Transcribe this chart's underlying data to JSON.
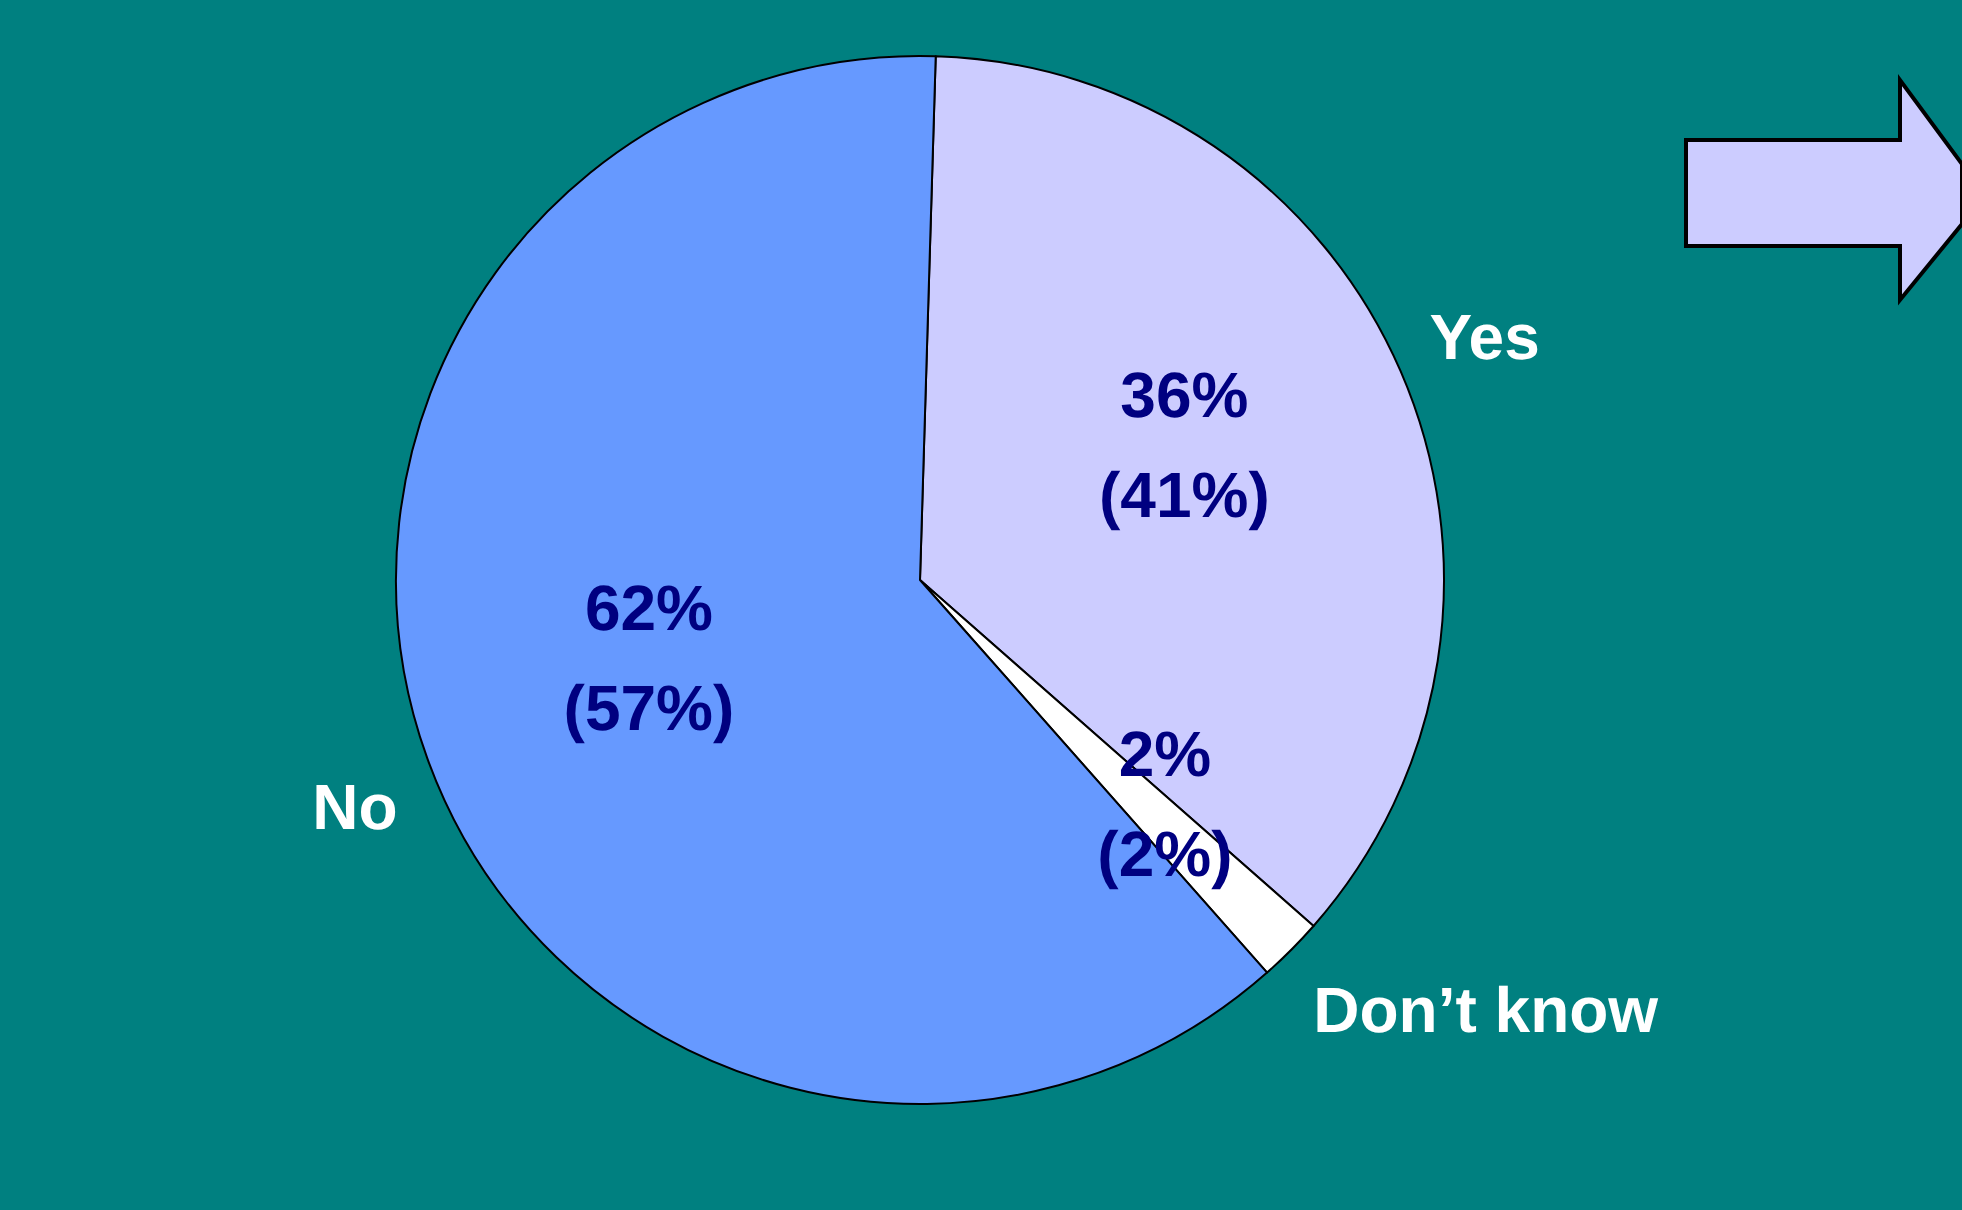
{
  "chart_data": {
    "type": "pie",
    "categories": [
      "Yes",
      "Don’t know",
      "No"
    ],
    "values": [
      36,
      2,
      62
    ],
    "colors": [
      "#ccccff",
      "#ffffff",
      "#6699ff"
    ],
    "value_labels": [
      "36%\n(41%)",
      "2%\n(2%)",
      "62%\n(57%)"
    ]
  }
}
